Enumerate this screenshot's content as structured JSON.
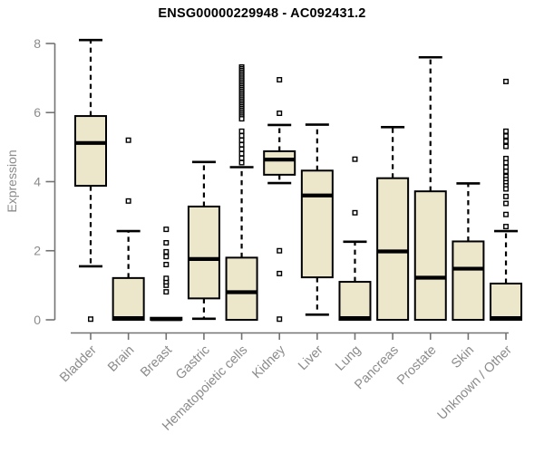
{
  "chart_data": {
    "type": "boxplot",
    "title": "ENSG00000229948 - AC092431.2",
    "ylabel": "Expression",
    "xlabel": "",
    "ylim": [
      0,
      8
    ],
    "yticks": [
      0,
      2,
      4,
      6,
      8
    ],
    "grid": false,
    "legend": null,
    "categories": [
      "Bladder",
      "Brain",
      "Breast",
      "Gastric",
      "Hematopoietic cells",
      "Kidney",
      "Liver",
      "Lung",
      "Pancreas",
      "Prostate",
      "Skin",
      "Unknown / Other"
    ],
    "boxes": [
      {
        "category": "Bladder",
        "whisker_low": 1.55,
        "q1": 3.88,
        "median": 5.12,
        "q3": 5.9,
        "whisker_high": 8.1,
        "outliers": [
          0.02
        ]
      },
      {
        "category": "Brain",
        "whisker_low": 0,
        "q1": 0,
        "median": 0.05,
        "q3": 1.21,
        "whisker_high": 2.57,
        "outliers": [
          3.44,
          5.2
        ]
      },
      {
        "category": "Breast",
        "whisker_low": 0,
        "q1": 0,
        "median": 0.02,
        "q3": 0.06,
        "whisker_high": 0.06,
        "outliers": [
          0.81,
          1.0,
          1.1,
          1.2,
          1.6,
          1.83,
          1.97,
          2.23,
          2.62
        ]
      },
      {
        "category": "Gastric",
        "whisker_low": 0.03,
        "q1": 0.62,
        "median": 1.76,
        "q3": 3.28,
        "whisker_high": 4.57,
        "outliers": []
      },
      {
        "category": "Hematopoietic cells",
        "whisker_low": 0,
        "q1": 0,
        "median": 0.8,
        "q3": 1.8,
        "whisker_high": 4.42,
        "outliers": [
          7.32,
          7.27,
          7.22,
          7.17,
          7.12,
          7.07,
          7.02,
          6.97,
          6.92,
          6.87,
          6.82,
          6.77,
          6.72,
          6.67,
          6.62,
          6.57,
          6.52,
          6.47,
          6.42,
          6.37,
          6.32,
          6.27,
          6.22,
          6.17,
          6.12,
          6.07,
          6.02,
          5.97,
          5.92,
          5.87,
          5.82,
          5.46,
          5.33,
          5.2,
          5.07,
          4.94,
          4.81,
          4.68,
          4.55
        ]
      },
      {
        "category": "Kidney",
        "whisker_low": 3.96,
        "q1": 4.2,
        "median": 4.64,
        "q3": 4.88,
        "whisker_high": 5.64,
        "outliers": [
          6.95,
          5.98,
          2.0,
          1.34,
          0.02
        ]
      },
      {
        "category": "Liver",
        "whisker_low": 0.15,
        "q1": 1.23,
        "median": 3.6,
        "q3": 4.32,
        "whisker_high": 5.65,
        "outliers": []
      },
      {
        "category": "Lung",
        "whisker_low": 0,
        "q1": 0,
        "median": 0.05,
        "q3": 1.1,
        "whisker_high": 2.26,
        "outliers": [
          3.1,
          4.65
        ]
      },
      {
        "category": "Pancreas",
        "whisker_low": 0,
        "q1": 0,
        "median": 1.98,
        "q3": 4.1,
        "whisker_high": 5.58,
        "outliers": []
      },
      {
        "category": "Prostate",
        "whisker_low": 0,
        "q1": 0,
        "median": 1.22,
        "q3": 3.72,
        "whisker_high": 7.6,
        "outliers": []
      },
      {
        "category": "Skin",
        "whisker_low": 0,
        "q1": 0,
        "median": 1.48,
        "q3": 2.27,
        "whisker_high": 3.95,
        "outliers": []
      },
      {
        "category": "Unknown / Other",
        "whisker_low": 0,
        "q1": 0,
        "median": 0.05,
        "q3": 1.05,
        "whisker_high": 2.57,
        "outliers": [
          6.9,
          5.46,
          5.32,
          5.17,
          5.02,
          4.67,
          4.55,
          4.42,
          4.3,
          4.15,
          4.06,
          3.97,
          3.88,
          3.79,
          3.57,
          3.37,
          3.05,
          2.7
        ]
      }
    ],
    "colors": {
      "box_fill": "#ece7cb",
      "box_stroke": "#000000",
      "median": "#000000",
      "whisker": "#000000",
      "outlier_stroke": "#000000",
      "outlier_fill": "#ffffff",
      "axis_line": "#737373",
      "tick_label": "#8b8b8b",
      "title": "#000000",
      "background": "#ffffff"
    }
  }
}
